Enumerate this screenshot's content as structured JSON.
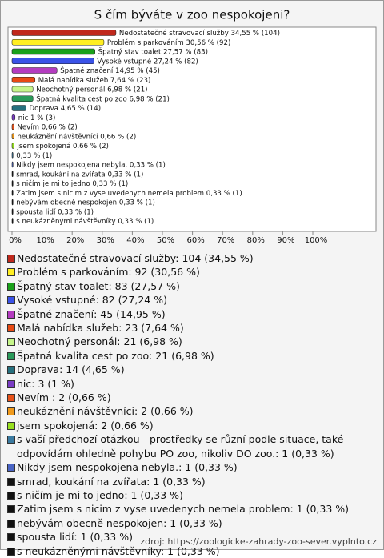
{
  "chart_data": {
    "type": "bar",
    "orientation": "horizontal",
    "title": "S čím býváte v zoo nespokojeni?",
    "categories": [
      "Nedostatečné stravovací služby",
      "Problém s parkováním",
      "Špatný stav toalet",
      "Vysoké vstupné",
      "Špatné značení",
      "Malá nabídka služeb",
      "Neochotný personál",
      "Špatná kvalita cest po zoo",
      "Doprava",
      "nic",
      "Nevím ",
      "neukáznění návštěvníci",
      "jsem spokojená",
      null,
      "Nikdy jsem nespokojena nebyla.",
      "smrad, koukání na zvířata",
      "s ničím je mi to jedno",
      "Zatim jsem s nicim z vyse uvedenych nemela problem",
      "nebývám obecně nespokojen",
      "spousta lidí",
      "s neukázněnými návštěvníky"
    ],
    "values": [
      34.55,
      30.56,
      27.57,
      27.24,
      14.95,
      7.64,
      6.98,
      6.98,
      4.65,
      1,
      0.66,
      0.66,
      0.66,
      0.33,
      0.33,
      0.33,
      0.33,
      0.33,
      0.33,
      0.33,
      0.33
    ],
    "value_labels": [
      "34,55 % (104)",
      "30,56 % (92)",
      "27,57 % (83)",
      "27,24 % (82)",
      "14,95 % (45)",
      "7,64 % (23)",
      "6,98 % (21)",
      "6,98 % (21)",
      "4,65 % (14)",
      "1 % (3)",
      "0,66 % (2)",
      "0,66 % (2)",
      "0,66 % (2)",
      "0,33 % (1)",
      "0,33 % (1)",
      "0,33 % (1)",
      "0,33 % (1)",
      "0,33 % (1)",
      "0,33 % (1)",
      "0,33 % (1)",
      "0,33 % (1)"
    ],
    "colors": [
      "#c0281c",
      "#ffee22",
      "#1aa01a",
      "#3a52e8",
      "#b43cc0",
      "#e84a14",
      "#c6f58a",
      "#2a9a5a",
      "#26707e",
      "#7a3cc4",
      "#e8521a",
      "#f09a1c",
      "#98e020",
      "#3a7aa0",
      "#4a64c4",
      "#111111",
      "#111111",
      "#111111",
      "#111111",
      "#111111",
      "#111111"
    ],
    "legend_labels": [
      "Nedostatečné stravovací služby: 104 (34,55 %)",
      "Problém s parkováním: 92 (30,56 %)",
      "Špatný stav toalet: 83 (27,57 %)",
      "Vysoké vstupné: 82 (27,24 %)",
      "Špatné značení: 45 (14,95 %)",
      "Malá nabídka služeb: 23 (7,64 %)",
      "Neochotný personál: 21 (6,98 %)",
      "Špatná kvalita cest po zoo: 21 (6,98 %)",
      "Doprava: 14 (4,65 %)",
      "nic: 3 (1 %)",
      "Nevím : 2 (0,66 %)",
      "neukáznění návštěvníci: 2 (0,66 %)",
      "jsem spokojená: 2 (0,66 %)",
      "s vaší předchozí otázkou - prostředky se různí podle situace, také odpovídám ohledně pohybu PO zoo, nikoliv DO zoo.: 1 (0,33 %)",
      "Nikdy jsem nespokojena nebyla.: 1 (0,33 %)",
      "smrad, koukání na zvířata: 1 (0,33 %)",
      "s ničím je mi to jedno: 1 (0,33 %)",
      "Zatim jsem s nicim z vyse uvedenych nemela problem: 1 (0,33 %)",
      "nebývám obecně nespokojen: 1 (0,33 %)",
      "spousta lidí: 1 (0,33 %)",
      "s neukázněnými návštěvníky: 1 (0,33 %)"
    ],
    "xlim": [
      0,
      100
    ],
    "xticks": [
      {
        "value": 0,
        "label": "0%"
      },
      {
        "value": 10,
        "label": "10%"
      },
      {
        "value": 20,
        "label": "20%"
      },
      {
        "value": 30,
        "label": "30%"
      },
      {
        "value": 40,
        "label": "40%"
      },
      {
        "value": 50,
        "label": "50%"
      },
      {
        "value": 60,
        "label": "60%"
      },
      {
        "value": 70,
        "label": "70%"
      },
      {
        "value": 80,
        "label": "80%"
      },
      {
        "value": 90,
        "label": "90%"
      },
      {
        "value": 100,
        "label": "100%"
      }
    ],
    "source": "zdroj: https://zoologicke-zahrady-zoo-sever.vyplnto.cz"
  }
}
